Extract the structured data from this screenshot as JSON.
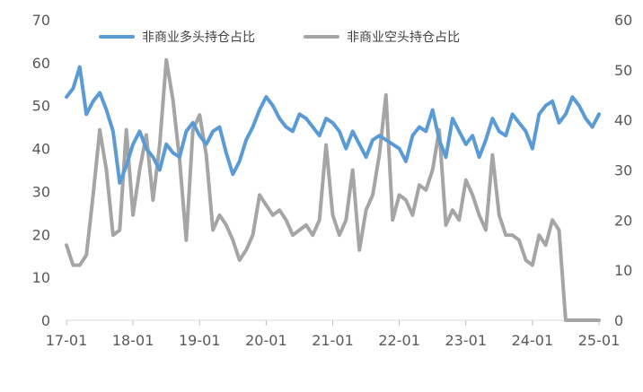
{
  "chart_data": {
    "type": "line",
    "title": "",
    "xlabel": "",
    "ylabel": "",
    "x_ticks": [
      "17-01",
      "18-01",
      "19-01",
      "20-01",
      "21-01",
      "22-01",
      "23-01",
      "24-01",
      "25-01"
    ],
    "y_left": {
      "min": 0,
      "max": 70,
      "ticks": [
        0,
        10,
        20,
        30,
        40,
        50,
        60,
        70
      ]
    },
    "y_right": {
      "min": 0,
      "max": 60,
      "ticks": [
        0,
        10,
        20,
        30,
        40,
        50,
        60
      ]
    },
    "legend_position": "top",
    "grid": false,
    "series": [
      {
        "name": "非商业多头持仓占比",
        "axis": "left",
        "color": "#5B9BD5",
        "x": [
          0,
          0.1,
          0.2,
          0.3,
          0.4,
          0.5,
          0.6,
          0.7,
          0.8,
          0.9,
          1.0,
          1.1,
          1.2,
          1.3,
          1.4,
          1.5,
          1.6,
          1.7,
          1.8,
          1.9,
          2.0,
          2.1,
          2.2,
          2.3,
          2.4,
          2.5,
          2.6,
          2.7,
          2.8,
          2.9,
          3.0,
          3.1,
          3.2,
          3.3,
          3.4,
          3.5,
          3.6,
          3.7,
          3.8,
          3.9,
          4.0,
          4.1,
          4.2,
          4.3,
          4.4,
          4.5,
          4.6,
          4.7,
          4.8,
          4.9,
          5.0,
          5.1,
          5.2,
          5.3,
          5.4,
          5.5,
          5.6,
          5.7,
          5.8,
          5.9,
          6.0,
          6.1,
          6.2,
          6.3,
          6.4,
          6.5,
          6.6,
          6.7,
          6.8,
          6.9,
          7.0,
          7.1,
          7.2,
          7.3,
          7.4,
          7.5,
          7.6,
          7.7,
          7.8,
          7.9,
          8.0
        ],
        "values": [
          52,
          54,
          59,
          48,
          51,
          53,
          49,
          44,
          32,
          36,
          41,
          44,
          40,
          38,
          35,
          41,
          39,
          38,
          44,
          46,
          43,
          41,
          44,
          45,
          39,
          34,
          37,
          42,
          45,
          49,
          52,
          50,
          47,
          45,
          44,
          48,
          47,
          45,
          43,
          47,
          46,
          44,
          40,
          44,
          41,
          38,
          42,
          43,
          42,
          41,
          40,
          37,
          43,
          45,
          44,
          49,
          42,
          38,
          47,
          44,
          41,
          43,
          38,
          42,
          47,
          44,
          43,
          48,
          46,
          44,
          40,
          48,
          50,
          51,
          46,
          48,
          52,
          50,
          47,
          45,
          48
        ]
      },
      {
        "name": "非商业空头持仓占比",
        "axis": "right",
        "color": "#A5A5A5",
        "x": [
          0,
          0.1,
          0.2,
          0.3,
          0.4,
          0.5,
          0.6,
          0.7,
          0.8,
          0.9,
          1.0,
          1.1,
          1.2,
          1.3,
          1.4,
          1.5,
          1.6,
          1.7,
          1.8,
          1.9,
          2.0,
          2.1,
          2.2,
          2.3,
          2.4,
          2.5,
          2.6,
          2.7,
          2.8,
          2.9,
          3.0,
          3.1,
          3.2,
          3.3,
          3.4,
          3.5,
          3.6,
          3.7,
          3.8,
          3.9,
          4.0,
          4.1,
          4.2,
          4.3,
          4.4,
          4.5,
          4.6,
          4.7,
          4.8,
          4.9,
          5.0,
          5.1,
          5.2,
          5.3,
          5.4,
          5.5,
          5.6,
          5.7,
          5.8,
          5.9,
          6.0,
          6.1,
          6.2,
          6.3,
          6.4,
          6.5,
          6.6,
          6.7,
          6.8,
          6.9,
          7.0,
          7.1,
          7.2,
          7.3,
          7.4,
          7.5,
          7.6,
          7.7,
          7.8,
          7.9,
          8.0
        ],
        "values": [
          15,
          11,
          11,
          13,
          25,
          38,
          30,
          17,
          18,
          38,
          21,
          30,
          37,
          24,
          35,
          52,
          44,
          32,
          16,
          38,
          41,
          33,
          18,
          21,
          19,
          16,
          12,
          14,
          17,
          25,
          23,
          21,
          22,
          20,
          17,
          18,
          19,
          17,
          20,
          35,
          21,
          17,
          20,
          30,
          14,
          22,
          25,
          33,
          45,
          20,
          25,
          24,
          21,
          27,
          26,
          30,
          38,
          19,
          22,
          20,
          28,
          25,
          21,
          18,
          33,
          21,
          17,
          17,
          16,
          12,
          11,
          17,
          15,
          20,
          18,
          0,
          0,
          0,
          0,
          0,
          0
        ]
      }
    ]
  }
}
